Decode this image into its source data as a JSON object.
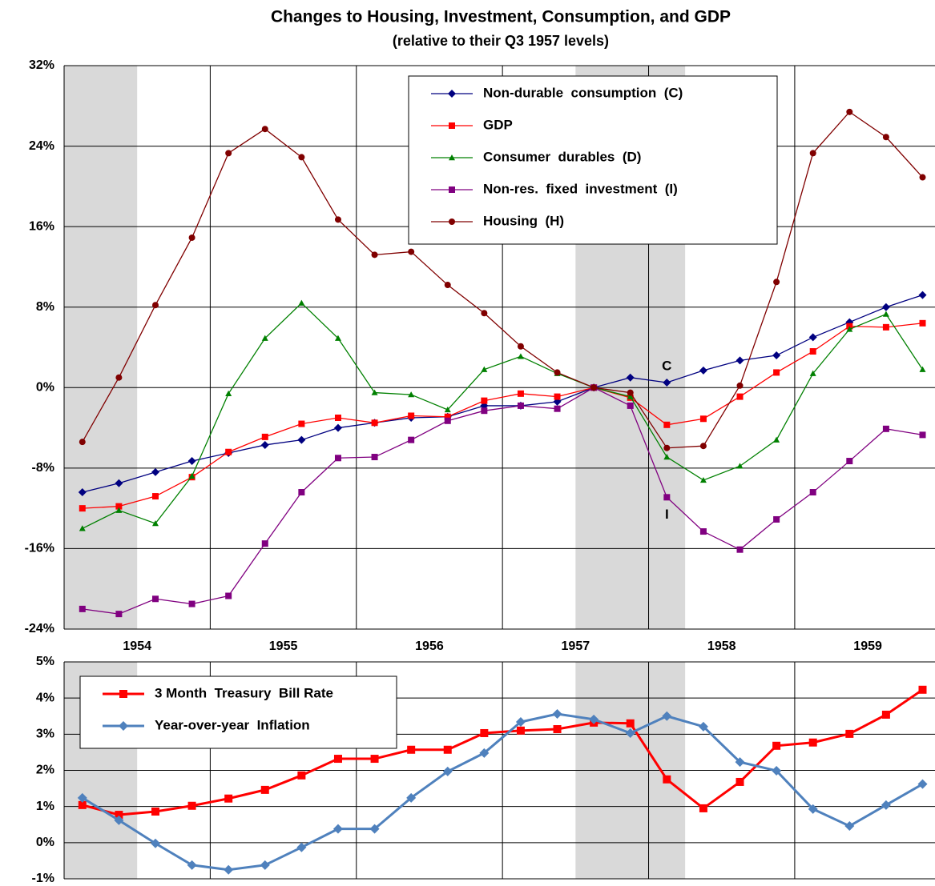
{
  "chart_data": [
    {
      "type": "line",
      "title": "Changes to Housing, Investment, Consumption, and GDP",
      "subtitle": "(relative to their Q3 1957 levels)",
      "x": [
        1954.125,
        1954.375,
        1954.625,
        1954.875,
        1955.125,
        1955.375,
        1955.625,
        1955.875,
        1956.125,
        1956.375,
        1956.625,
        1956.875,
        1957.125,
        1957.375,
        1957.625,
        1957.875,
        1958.125,
        1958.375,
        1958.625,
        1958.875,
        1959.125,
        1959.375,
        1959.625,
        1959.875
      ],
      "xlim": [
        1954,
        1959.96
      ],
      "xtick_labels": [
        {
          "value": 1954.5,
          "label": "1954"
        },
        {
          "value": 1955.5,
          "label": "1955"
        },
        {
          "value": 1956.5,
          "label": "1956"
        },
        {
          "value": 1957.5,
          "label": "1957"
        },
        {
          "value": 1958.5,
          "label": "1958"
        },
        {
          "value": 1959.5,
          "label": "1959"
        }
      ],
      "xgrid": [
        1955,
        1956,
        1957,
        1958,
        1959
      ],
      "recessions": [
        [
          1954,
          1954.5
        ],
        [
          1957.5,
          1958.25
        ]
      ],
      "ylim": [
        -24,
        32
      ],
      "yticks": [
        {
          "value": 32,
          "label": "32%"
        },
        {
          "value": 24,
          "label": "24%"
        },
        {
          "value": 16,
          "label": "16%"
        },
        {
          "value": 8,
          "label": "8%"
        },
        {
          "value": 0,
          "label": "0%"
        },
        {
          "value": -8,
          "label": "-8%"
        },
        {
          "value": -16,
          "label": "-16%"
        },
        {
          "value": -24,
          "label": "-24%"
        }
      ],
      "grid": true,
      "legend": "upper right",
      "annotations": [
        "C",
        "I"
      ],
      "series": [
        {
          "name": "Non-durable  consumption  (C)",
          "color": "#000080",
          "marker": "diamond",
          "values": [
            -10.4,
            -9.5,
            -8.4,
            -7.3,
            -6.5,
            -5.7,
            -5.2,
            -4.0,
            -3.5,
            -3.0,
            -2.9,
            -1.8,
            -1.8,
            -1.4,
            0,
            1.0,
            0.5,
            1.7,
            2.7,
            3.2,
            5.0,
            6.5,
            8.0,
            9.2
          ]
        },
        {
          "name": "GDP",
          "color": "#ff0000",
          "marker": "square",
          "values": [
            -12.0,
            -11.8,
            -10.8,
            -8.9,
            -6.4,
            -4.9,
            -3.6,
            -3.0,
            -3.5,
            -2.8,
            -2.9,
            -1.3,
            -0.6,
            -0.9,
            0,
            -1.0,
            -3.7,
            -3.1,
            -0.9,
            1.5,
            3.6,
            6.1,
            6.0,
            6.4
          ]
        },
        {
          "name": "Consumer  durables  (D)",
          "color": "#008000",
          "marker": "triangle",
          "values": [
            -14.0,
            -12.2,
            -13.5,
            -8.8,
            -0.6,
            4.9,
            8.4,
            4.9,
            -0.5,
            -0.7,
            -2.2,
            1.8,
            3.1,
            1.4,
            0,
            -0.9,
            -6.9,
            -9.2,
            -7.8,
            -5.2,
            1.4,
            5.8,
            7.3,
            1.8
          ]
        },
        {
          "name": "Non-res.  fixed  investment  (I)",
          "color": "#800080",
          "marker": "square",
          "values": [
            -22.0,
            -22.5,
            -21.0,
            -21.5,
            -20.7,
            -15.5,
            -10.4,
            -7.0,
            -6.9,
            -5.2,
            -3.3,
            -2.3,
            -1.8,
            -2.1,
            0,
            -1.8,
            -10.9,
            -14.3,
            -16.1,
            -13.1,
            -10.4,
            -7.3,
            -4.1,
            -4.7
          ]
        },
        {
          "name": "Housing  (H)",
          "color": "#800000",
          "marker": "circle",
          "values": [
            -5.4,
            1.0,
            8.2,
            14.9,
            23.3,
            25.7,
            22.9,
            16.7,
            13.2,
            13.5,
            10.2,
            7.4,
            4.1,
            1.5,
            0,
            -0.5,
            -6.0,
            -5.8,
            0.2,
            10.5,
            23.3,
            27.4,
            24.9,
            20.9
          ]
        }
      ]
    },
    {
      "type": "line",
      "x": [
        1954.125,
        1954.375,
        1954.625,
        1954.875,
        1955.125,
        1955.375,
        1955.625,
        1955.875,
        1956.125,
        1956.375,
        1956.625,
        1956.875,
        1957.125,
        1957.375,
        1957.625,
        1957.875,
        1958.125,
        1958.375,
        1958.625,
        1958.875,
        1959.125,
        1959.375,
        1959.625,
        1959.875
      ],
      "xlim": [
        1954,
        1959.96
      ],
      "ylim": [
        -1,
        5
      ],
      "yticks": [
        {
          "value": 5,
          "label": "5%"
        },
        {
          "value": 4,
          "label": "4%"
        },
        {
          "value": 3,
          "label": "3%"
        },
        {
          "value": 2,
          "label": "2%"
        },
        {
          "value": 1,
          "label": "1%"
        },
        {
          "value": 0,
          "label": "0%"
        },
        {
          "value": -1,
          "label": "-1%"
        }
      ],
      "grid": true,
      "legend": "upper left",
      "series": [
        {
          "name": "3 Month  Treasury  Bill Rate",
          "color": "#ff0000",
          "marker": "square",
          "values": [
            1.04,
            0.77,
            0.86,
            1.02,
            1.22,
            1.46,
            1.86,
            2.32,
            2.32,
            2.57,
            2.57,
            3.03,
            3.1,
            3.14,
            3.32,
            3.3,
            1.75,
            0.95,
            1.68,
            2.68,
            2.77,
            3.01,
            3.54,
            4.23
          ]
        },
        {
          "name": "Year-over-year  Inflation",
          "color": "#4f81bd",
          "marker": "diamond",
          "values": [
            1.24,
            0.62,
            -0.02,
            -0.62,
            -0.75,
            -0.62,
            -0.13,
            0.38,
            0.38,
            1.24,
            1.97,
            2.48,
            3.34,
            3.56,
            3.41,
            3.03,
            3.5,
            3.21,
            2.23,
            1.99,
            0.93,
            0.46,
            1.04,
            1.62
          ]
        }
      ]
    }
  ]
}
